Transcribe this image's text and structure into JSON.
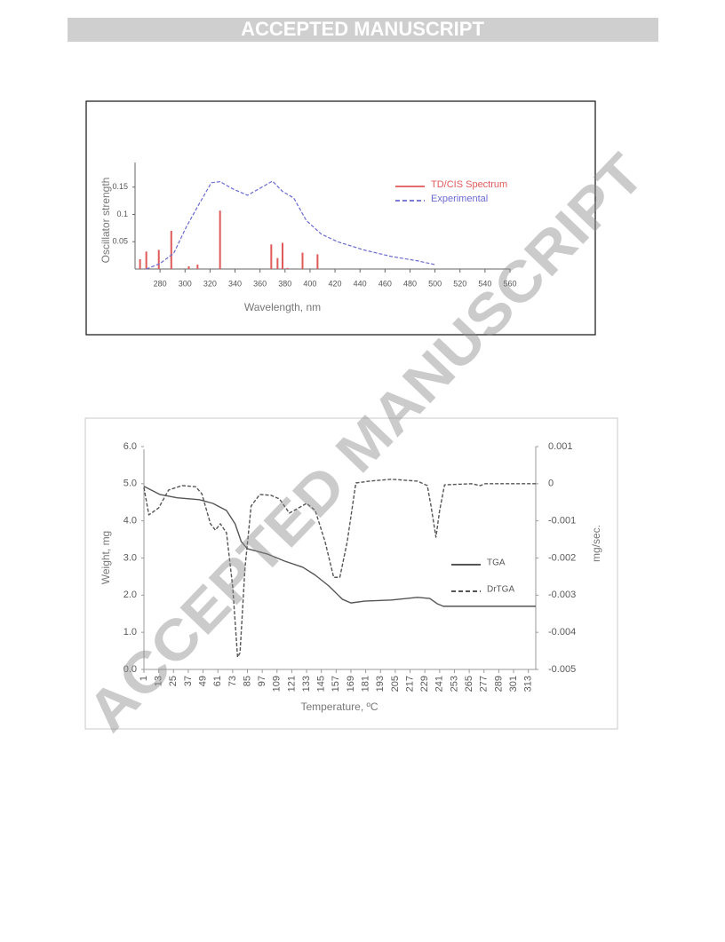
{
  "header": "ACCEPTED MANUSCRIPT",
  "watermark": "ACCEPTED MANUSCRIPT",
  "chart_data": [
    {
      "type": "combo",
      "x_label": "Wavelength, nm",
      "y_label": "Oscillator strength",
      "xlim": [
        260,
        560
      ],
      "xticks": [
        280,
        300,
        320,
        340,
        360,
        380,
        400,
        420,
        440,
        460,
        480,
        500,
        520,
        540,
        560
      ],
      "ylim": [
        0,
        0.2
      ],
      "yticks": [
        0.05,
        0.1,
        0.15
      ],
      "series": [
        {
          "name": "TD/CIS Spectrum",
          "type": "bar",
          "color": "#e05a5a",
          "x": [
            264,
            269,
            279,
            289,
            303,
            310,
            328,
            369,
            374,
            378,
            382,
            394,
            406
          ],
          "values": [
            0.018,
            0.032,
            0.035,
            0.07,
            0.005,
            0.008,
            0.107,
            0.045,
            0.02,
            0.048,
            0.002,
            0.03,
            0.027
          ]
        },
        {
          "name": "Experimental",
          "type": "line",
          "color": "#6a6ad0",
          "dash": true,
          "x": [
            269,
            280,
            291,
            301,
            310,
            321,
            328,
            338,
            350,
            360,
            370,
            378,
            387,
            397,
            409,
            422,
            443,
            465,
            486,
            500
          ],
          "values": [
            0,
            0.01,
            0.029,
            0.077,
            0.114,
            0.158,
            0.16,
            0.147,
            0.135,
            0.148,
            0.161,
            0.142,
            0.13,
            0.089,
            0.064,
            0.05,
            0.035,
            0.023,
            0.015,
            0.008
          ]
        }
      ]
    },
    {
      "type": "combo",
      "x_label": "Temperature, ºC",
      "y_label": "Weight, mg",
      "y2_label": "mg/sec.",
      "xlim": [
        1,
        319
      ],
      "xticks": [
        1,
        13,
        25,
        37,
        49,
        61,
        73,
        85,
        97,
        109,
        121,
        133,
        145,
        157,
        169,
        181,
        193,
        205,
        217,
        229,
        241,
        253,
        265,
        277,
        289,
        301,
        313
      ],
      "ylim": [
        0,
        6
      ],
      "yticks": [
        {
          "value": 0,
          "label": "0.0"
        },
        {
          "value": 1,
          "label": "1.0"
        },
        {
          "value": 2,
          "label": "2.0"
        },
        {
          "value": 3,
          "label": "3.0"
        },
        {
          "value": 4,
          "label": "4.0"
        },
        {
          "value": 5,
          "label": "5.0"
        },
        {
          "value": 6,
          "label": "6.0"
        }
      ],
      "y2lim": [
        -0.005,
        0.001
      ],
      "y2ticks": [
        -0.005,
        -0.004,
        -0.003,
        -0.002,
        -0.001,
        0,
        0.001
      ],
      "series": [
        {
          "name": "TGA",
          "type": "line",
          "color": "#555555",
          "x": [
            1,
            14,
            28,
            46,
            57,
            68,
            75,
            80,
            85,
            101,
            115,
            130,
            140,
            151,
            162,
            169,
            180,
            202,
            223,
            233,
            239,
            244,
            267,
            319
          ],
          "values": [
            4.93,
            4.71,
            4.62,
            4.57,
            4.47,
            4.28,
            3.92,
            3.44,
            3.25,
            3.11,
            2.92,
            2.75,
            2.54,
            2.25,
            1.89,
            1.79,
            1.84,
            1.87,
            1.94,
            1.91,
            1.77,
            1.7,
            1.7,
            1.7
          ]
        },
        {
          "name": "DrTGA",
          "type": "line",
          "color": "#555555",
          "dash": true,
          "axis": "y2",
          "x": [
            1,
            5,
            13,
            21,
            32,
            43,
            48,
            55,
            59,
            63,
            68,
            73,
            77,
            79,
            83,
            88,
            95,
            104,
            111,
            119,
            124,
            133,
            140,
            148,
            155,
            160,
            166,
            173,
            184,
            202,
            223,
            231,
            234,
            238,
            241,
            245,
            267,
            274,
            278,
            319
          ],
          "values": [
            -0.0001,
            -0.00084,
            -0.00065,
            -0.00017,
            -5e-05,
            -8e-05,
            -0.00027,
            -0.00108,
            -0.00125,
            -0.00108,
            -0.00132,
            -0.00276,
            -0.00467,
            -0.00455,
            -0.00227,
            -0.0006,
            -0.00029,
            -0.00031,
            -0.00041,
            -0.00079,
            -0.0007,
            -0.00053,
            -0.00072,
            -0.00156,
            -0.00252,
            -0.00252,
            -0.00156,
            2e-05,
            7e-05,
            0.00012,
            7e-05,
            -5e-05,
            -0.0006,
            -0.00144,
            -0.00072,
            -3e-05,
            0,
            -5e-05,
            0,
            0
          ]
        }
      ]
    }
  ]
}
